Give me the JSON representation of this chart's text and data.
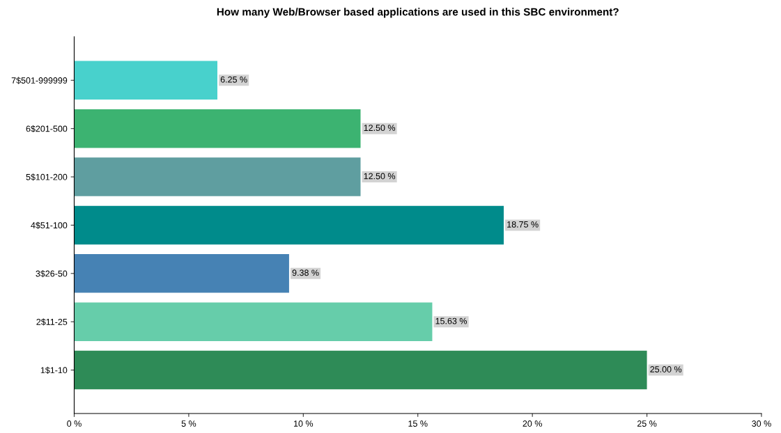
{
  "chart_data": {
    "type": "bar",
    "orientation": "horizontal",
    "title": "How many Web/Browser based applications are used in this SBC environment?",
    "categories": [
      "7$501-999999",
      "6$201-500",
      "5$101-200",
      "4$51-100",
      "3$26-50",
      "2$11-25",
      "1$1-10"
    ],
    "values": [
      6.25,
      12.5,
      12.5,
      18.75,
      9.38,
      15.63,
      25.0
    ],
    "colors": [
      "#48d1cc",
      "#3cb371",
      "#5f9ea0",
      "#008b8b",
      "#4682b4",
      "#66cdaa",
      "#2e8b57"
    ],
    "value_labels": [
      "6.25 %",
      "12.50 %",
      "12.50 %",
      "18.75 %",
      "9.38 %",
      "15.63 %",
      "25.00 %"
    ],
    "xlim": [
      0,
      30
    ],
    "xticks": [
      {
        "value": 0,
        "label": "0 %"
      },
      {
        "value": 5,
        "label": "5 %"
      },
      {
        "value": 10,
        "label": "10 %"
      },
      {
        "value": 15,
        "label": "15 %"
      },
      {
        "value": 20,
        "label": "20 %"
      },
      {
        "value": 25,
        "label": "25 %"
      },
      {
        "value": 30,
        "label": "30 %"
      }
    ],
    "grid": false,
    "legend": false
  }
}
